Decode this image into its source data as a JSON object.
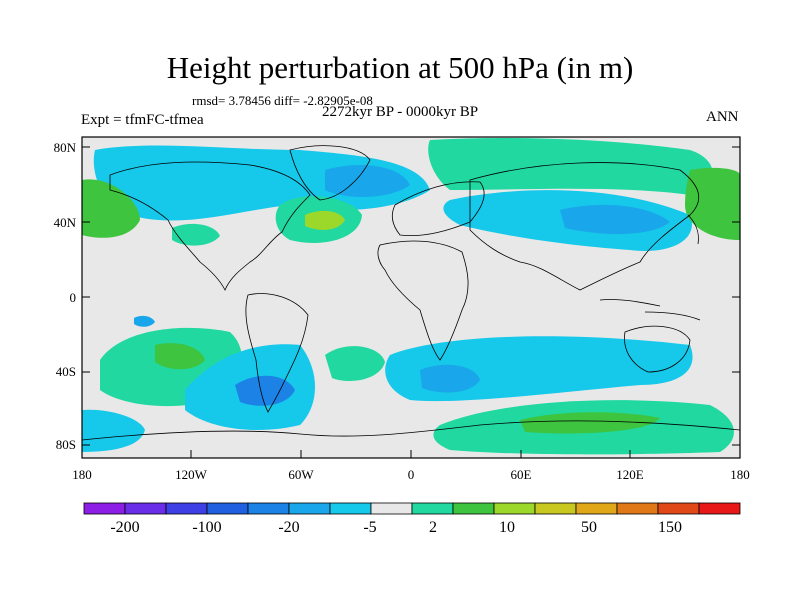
{
  "header": {
    "title": "Height perturbation at 500 hPa (in m)",
    "stats": "rmsd= 3.78456 diff= -2.82905e-08",
    "period": "2272kyr BP - 0000kyr BP",
    "experiment": "Expt = tfmFC-tfmea",
    "season": "ANN"
  },
  "map": {
    "lat_labels": [
      "80N",
      "40N",
      "0",
      "40S",
      "80S"
    ],
    "lon_labels": [
      "180",
      "120W",
      "60W",
      "0",
      "60E",
      "120E",
      "180"
    ]
  },
  "colorbar": {
    "labels": [
      "-200",
      "-100",
      "-20",
      "-5",
      "2",
      "10",
      "50",
      "150"
    ],
    "colors": [
      "#8c1ee6",
      "#6a2ee8",
      "#3f3fe6",
      "#1f5fe0",
      "#1c82e6",
      "#1aa6ea",
      "#16c8ea",
      "#e8e8e8",
      "#20d8a0",
      "#3ec43e",
      "#9cd82a",
      "#c8c820",
      "#e0a818",
      "#e07818",
      "#e04818",
      "#e81818"
    ]
  },
  "fields": {
    "neutral": "#e8e8e8",
    "pos1": "#20d8a0",
    "pos2": "#3ec43e",
    "pos3": "#9cd82a",
    "pos4": "#c8c820",
    "neg1": "#16c8ea",
    "neg2": "#1aa6ea",
    "neg3": "#1c82e6",
    "neg4": "#1f5fe0"
  }
}
